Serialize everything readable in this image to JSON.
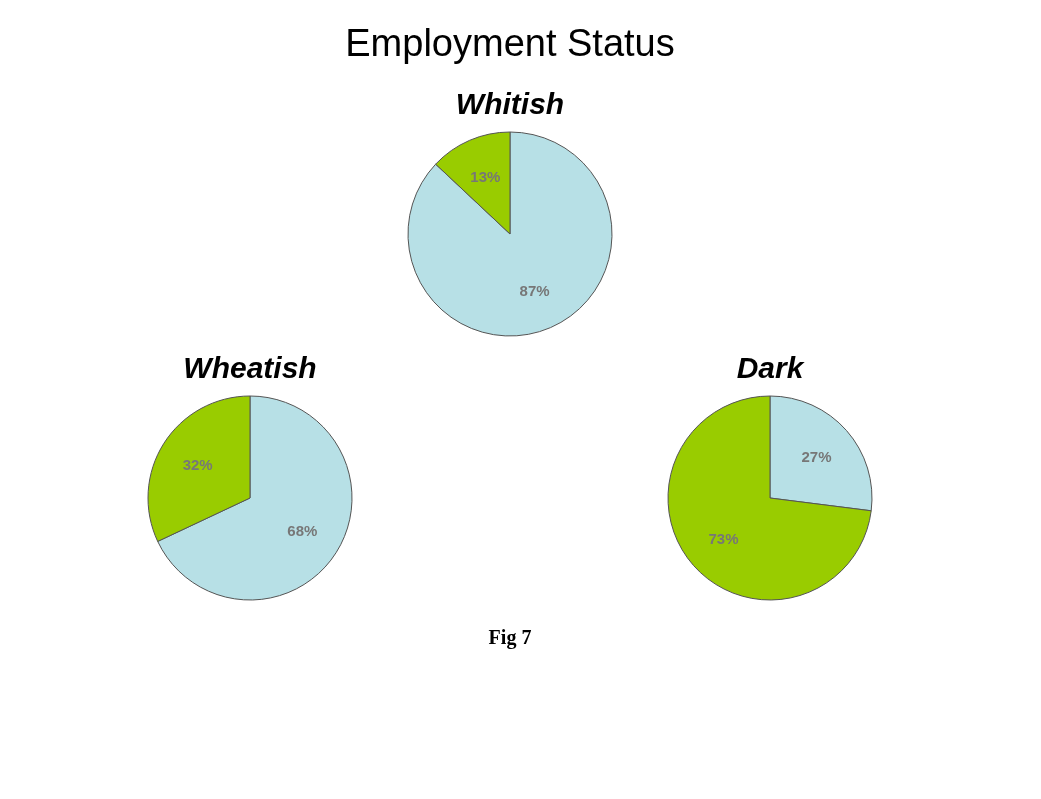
{
  "chart_data": [
    {
      "type": "other",
      "title": "Employment Status",
      "annotations": [
        "Fig 7"
      ]
    },
    {
      "type": "pie",
      "title": "Whitish",
      "categories": [
        null,
        null
      ],
      "values": [
        87,
        13
      ],
      "colors": [
        "#b7e0e6",
        "#99cc00"
      ],
      "value_labels": [
        "87%",
        "13%"
      ]
    },
    {
      "type": "pie",
      "title": "Wheatish",
      "categories": [
        null,
        null
      ],
      "values": [
        68,
        32
      ],
      "colors": [
        "#b7e0e6",
        "#99cc00"
      ],
      "value_labels": [
        "68%",
        "32%"
      ]
    },
    {
      "type": "pie",
      "title": "Dark",
      "categories": [
        null,
        null
      ],
      "values": [
        27,
        73
      ],
      "colors": [
        "#b7e0e6",
        "#99cc00"
      ],
      "value_labels": [
        "27%",
        "73%"
      ]
    }
  ]
}
